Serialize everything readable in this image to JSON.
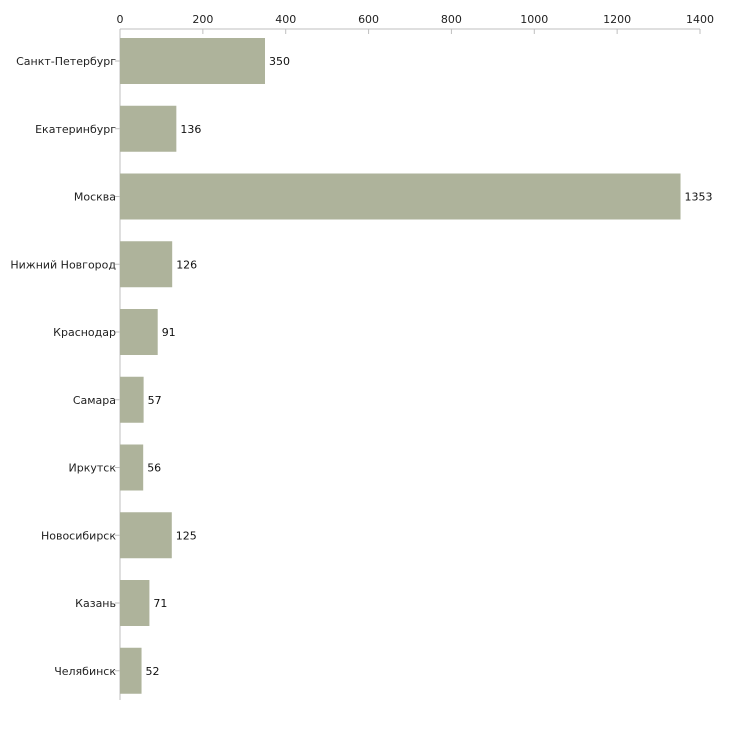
{
  "chart_data": {
    "type": "bar",
    "orientation": "horizontal",
    "title": "",
    "xlabel": "",
    "ylabel": "",
    "xlim": [
      0,
      1400
    ],
    "x_ticks": [
      0,
      200,
      400,
      600,
      800,
      1000,
      1200,
      1400
    ],
    "x_tick_labels": [
      "0",
      "200",
      "400",
      "600",
      "800",
      "1000",
      "1200",
      "1400"
    ],
    "categories": [
      "Санкт-Петербург",
      "Екатеринбург",
      "Москва",
      "Нижний Новгород",
      "Краснодар",
      "Самара",
      "Иркутск",
      "Новосибирск",
      "Казань",
      "Челябинск"
    ],
    "values": [
      350,
      136,
      1353,
      126,
      91,
      57,
      56,
      125,
      71,
      52
    ],
    "value_labels": [
      "350",
      "136",
      "1353",
      "126",
      "91",
      "57",
      "56",
      "125",
      "71",
      "52"
    ],
    "grid": false,
    "legend": "none",
    "colors": {
      "bar": "#aeb39b",
      "axis": "#bfbfbf",
      "text": "#222222"
    }
  }
}
